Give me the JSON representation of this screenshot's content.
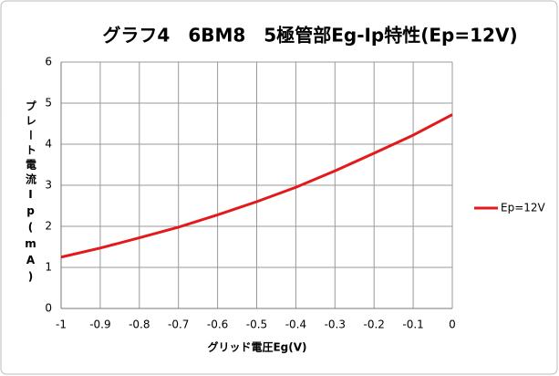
{
  "chart_data": {
    "type": "line",
    "title": "グラフ4　6BM8　5極管部Eg-Ip特性(Ep=12V)",
    "x_label": "グリッド電圧Eg(V)",
    "y_label": "プレート電流Ip(mA)",
    "x": [
      -1,
      -0.9,
      -0.8,
      -0.7,
      -0.6,
      -0.5,
      -0.4,
      -0.3,
      -0.2,
      -0.1,
      0
    ],
    "series": [
      {
        "name": "Ep=12V",
        "color": "#e31a1c",
        "values": [
          1.25,
          1.47,
          1.72,
          1.98,
          2.28,
          2.6,
          2.95,
          3.35,
          3.78,
          4.22,
          4.72
        ]
      }
    ],
    "xlim": [
      -1,
      0
    ],
    "xticks": [
      -1,
      -0.9,
      -0.8,
      -0.7,
      -0.6,
      -0.5,
      -0.4,
      -0.3,
      -0.2,
      -0.1,
      0
    ],
    "ylim": [
      0,
      6
    ],
    "yticks": [
      0,
      1,
      2,
      3,
      4,
      5,
      6
    ],
    "grid": true,
    "legend": "right"
  }
}
